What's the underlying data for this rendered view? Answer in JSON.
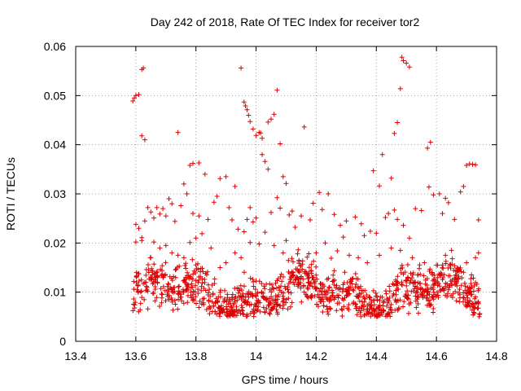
{
  "chart_data": {
    "type": "scatter",
    "title": "Day 242 of 2018, Rate Of TEC Index for receiver tor2",
    "xlabel": "GPS time / hours",
    "ylabel": "ROTI / TECUs",
    "xlim": [
      13.4,
      14.8
    ],
    "ylim": [
      0,
      0.06
    ],
    "x_ticks": [
      13.4,
      13.6,
      13.8,
      14.0,
      14.2,
      14.4,
      14.6,
      14.8
    ],
    "x_tick_labels": [
      "13.4",
      "13.6",
      "13.8",
      "14",
      "14.2",
      "14.4",
      "14.6",
      "14.8"
    ],
    "y_ticks": [
      0,
      0.01,
      0.02,
      0.03,
      0.04,
      0.05,
      0.06
    ],
    "y_tick_labels": [
      "0",
      "0.01",
      "0.02",
      "0.03",
      "0.04",
      "0.05",
      "0.06"
    ],
    "grid": true,
    "marker": "+",
    "marker_color": "#dd0000",
    "series": [
      {
        "name": "tor2",
        "points": [
          [
            13.59,
            0.0489
          ],
          [
            13.595,
            0.0495
          ],
          [
            13.6,
            0.05
          ],
          [
            13.61,
            0.0502
          ],
          [
            13.62,
            0.0553
          ],
          [
            13.625,
            0.0556
          ],
          [
            13.62,
            0.0418
          ],
          [
            13.63,
            0.041
          ],
          [
            13.74,
            0.0425
          ],
          [
            13.95,
            0.0556
          ],
          [
            13.96,
            0.0487
          ],
          [
            13.965,
            0.0479
          ],
          [
            13.97,
            0.0471
          ],
          [
            13.975,
            0.046
          ],
          [
            13.98,
            0.0447
          ],
          [
            13.99,
            0.0432
          ],
          [
            14.0,
            0.0419
          ],
          [
            14.01,
            0.0425
          ],
          [
            14.015,
            0.0424
          ],
          [
            14.02,
            0.0413
          ],
          [
            14.04,
            0.0446
          ],
          [
            14.05,
            0.0452
          ],
          [
            14.06,
            0.0462
          ],
          [
            14.07,
            0.0511
          ],
          [
            14.08,
            0.0402
          ],
          [
            14.16,
            0.0436
          ],
          [
            14.42,
            0.038
          ],
          [
            14.45,
            0.0332
          ],
          [
            14.46,
            0.0423
          ],
          [
            14.47,
            0.0445
          ],
          [
            14.48,
            0.0514
          ],
          [
            14.485,
            0.0578
          ],
          [
            14.49,
            0.0571
          ],
          [
            14.5,
            0.0566
          ],
          [
            14.51,
            0.0558
          ],
          [
            14.57,
            0.0393
          ],
          [
            14.58,
            0.0405
          ],
          [
            14.575,
            0.0314
          ],
          [
            14.7,
            0.0358
          ],
          [
            14.71,
            0.0361
          ],
          [
            14.72,
            0.036
          ],
          [
            14.73,
            0.0359
          ],
          [
            13.78,
            0.0358
          ],
          [
            13.79,
            0.0362
          ],
          [
            13.81,
            0.0363
          ],
          [
            13.83,
            0.034
          ],
          [
            13.88,
            0.0331
          ],
          [
            13.9,
            0.0335
          ],
          [
            13.93,
            0.0315
          ],
          [
            13.76,
            0.032
          ],
          [
            13.77,
            0.03
          ],
          [
            13.71,
            0.029
          ],
          [
            13.72,
            0.028
          ],
          [
            14.02,
            0.038
          ],
          [
            14.03,
            0.0366
          ],
          [
            14.04,
            0.035
          ],
          [
            14.09,
            0.0335
          ],
          [
            14.1,
            0.0321
          ],
          [
            14.21,
            0.0303
          ],
          [
            14.24,
            0.03
          ],
          [
            14.39,
            0.0347
          ],
          [
            14.41,
            0.0316
          ],
          [
            14.59,
            0.0298
          ],
          [
            14.61,
            0.03
          ],
          [
            14.68,
            0.0304
          ],
          [
            14.69,
            0.0315
          ],
          [
            14.74,
            0.0247
          ],
          [
            14.63,
            0.0291
          ],
          [
            14.64,
            0.0282
          ],
          [
            13.6,
            0.0238
          ],
          [
            13.61,
            0.023
          ],
          [
            13.62,
            0.0205
          ],
          [
            13.63,
            0.0245
          ],
          [
            13.64,
            0.0272
          ],
          [
            13.65,
            0.0263
          ],
          [
            13.66,
            0.0251
          ],
          [
            13.67,
            0.0272
          ],
          [
            13.68,
            0.0259
          ],
          [
            13.69,
            0.027
          ],
          [
            13.7,
            0.0255
          ],
          [
            13.73,
            0.0244
          ],
          [
            13.75,
            0.0276
          ],
          [
            13.79,
            0.026
          ],
          [
            13.81,
            0.0255
          ],
          [
            13.84,
            0.0248
          ],
          [
            13.86,
            0.0283
          ],
          [
            13.87,
            0.0295
          ],
          [
            13.91,
            0.0272
          ],
          [
            13.92,
            0.0247
          ],
          [
            13.94,
            0.0228
          ],
          [
            13.96,
            0.0223
          ],
          [
            13.97,
            0.0248
          ],
          [
            13.98,
            0.0272
          ],
          [
            13.99,
            0.0243
          ],
          [
            14.0,
            0.0251
          ],
          [
            14.05,
            0.0262
          ],
          [
            14.07,
            0.0292
          ],
          [
            14.08,
            0.0271
          ],
          [
            14.11,
            0.0257
          ],
          [
            14.12,
            0.0265
          ],
          [
            14.13,
            0.0232
          ],
          [
            14.15,
            0.0255
          ],
          [
            14.18,
            0.0247
          ],
          [
            14.19,
            0.0281
          ],
          [
            14.22,
            0.0268
          ],
          [
            14.26,
            0.0258
          ],
          [
            14.28,
            0.0236
          ],
          [
            14.29,
            0.0212
          ],
          [
            14.3,
            0.0245
          ],
          [
            14.33,
            0.0253
          ],
          [
            14.35,
            0.0239
          ],
          [
            14.36,
            0.0215
          ],
          [
            14.38,
            0.0224
          ],
          [
            14.4,
            0.022
          ],
          [
            14.43,
            0.0252
          ],
          [
            14.44,
            0.026
          ],
          [
            14.46,
            0.0267
          ],
          [
            14.47,
            0.0248
          ],
          [
            14.49,
            0.0236
          ],
          [
            14.51,
            0.021
          ],
          [
            14.53,
            0.027
          ],
          [
            14.55,
            0.0266
          ],
          [
            14.62,
            0.026
          ],
          [
            14.66,
            0.0248
          ],
          [
            13.6,
            0.0202
          ],
          [
            13.62,
            0.0211
          ],
          [
            13.65,
            0.017
          ],
          [
            13.66,
            0.0202
          ],
          [
            13.68,
            0.019
          ],
          [
            13.7,
            0.0195
          ],
          [
            13.72,
            0.018
          ],
          [
            13.74,
            0.0175
          ],
          [
            13.76,
            0.017
          ],
          [
            13.78,
            0.0201
          ],
          [
            13.8,
            0.021
          ],
          [
            13.82,
            0.0219
          ],
          [
            13.85,
            0.019
          ],
          [
            13.88,
            0.015
          ],
          [
            13.9,
            0.016
          ],
          [
            13.93,
            0.018
          ],
          [
            13.95,
            0.017
          ],
          [
            13.98,
            0.0201
          ],
          [
            14.01,
            0.0198
          ],
          [
            14.03,
            0.0222
          ],
          [
            14.06,
            0.0195
          ],
          [
            14.09,
            0.018
          ],
          [
            14.1,
            0.0205
          ],
          [
            14.14,
            0.0186
          ],
          [
            14.17,
            0.0171
          ],
          [
            14.2,
            0.018
          ],
          [
            14.23,
            0.02
          ],
          [
            14.25,
            0.0169
          ],
          [
            14.27,
            0.0184
          ],
          [
            14.31,
            0.0175
          ],
          [
            14.34,
            0.017
          ],
          [
            14.37,
            0.016
          ],
          [
            14.41,
            0.0175
          ],
          [
            14.45,
            0.019
          ],
          [
            14.48,
            0.0185
          ],
          [
            14.52,
            0.017
          ],
          [
            14.56,
            0.016
          ],
          [
            14.6,
            0.0155
          ],
          [
            14.63,
            0.0175
          ],
          [
            14.65,
            0.0185
          ],
          [
            14.7,
            0.016
          ],
          [
            14.73,
            0.017
          ],
          [
            14.74,
            0.018
          ]
        ],
        "dense_band": [
          0.005,
          0.018
        ]
      }
    ]
  }
}
